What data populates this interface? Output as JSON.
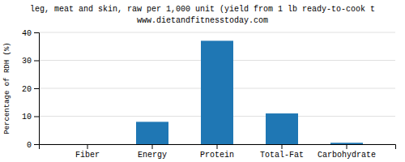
{
  "chart_data": {
    "type": "bar",
    "title": "leg, meat and skin, raw per 1,000 unit (yield from 1 lb ready-to-cook t",
    "subtitle": "www.dietandfitnesstoday.com",
    "categories": [
      "Fiber",
      "Energy",
      "Protein",
      "Total-Fat",
      "Carbohydrate"
    ],
    "values": [
      0,
      8,
      37,
      11,
      0.5
    ],
    "ylabel": "Percentage of RDH (%)",
    "ylim": [
      0,
      40
    ],
    "yticks": [
      0,
      10,
      20,
      30,
      40
    ],
    "grid": true
  }
}
